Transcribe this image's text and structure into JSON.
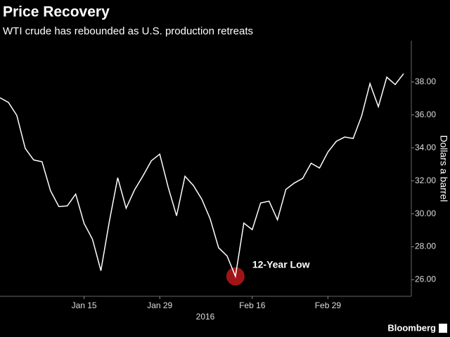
{
  "header": {
    "title": "Price Recovery",
    "subtitle": "WTI crude has rebounded as U.S. production retreats"
  },
  "footer": {
    "source": "Bloomberg"
  },
  "chart_data": {
    "type": "line",
    "categories": [
      null,
      null,
      null,
      null,
      null,
      null,
      null,
      null,
      null,
      null,
      "Jan 15",
      null,
      null,
      null,
      null,
      null,
      null,
      null,
      null,
      "Jan 29",
      null,
      null,
      null,
      null,
      null,
      null,
      null,
      null,
      null,
      null,
      "Feb 16",
      null,
      null,
      null,
      null,
      null,
      null,
      null,
      null,
      "Feb 29",
      null,
      null,
      null,
      null,
      null,
      null,
      null,
      null,
      null
    ],
    "x_label": "2016",
    "y_label": "Dollars a barrel",
    "series": [
      {
        "name": "WTI crude",
        "color": "#ffffff",
        "values": [
          37.04,
          36.76,
          35.97,
          33.97,
          33.27,
          33.16,
          31.41,
          30.44,
          30.48,
          31.2,
          29.42,
          28.46,
          26.55,
          29.53,
          32.19,
          30.34,
          31.45,
          32.3,
          33.22,
          33.62,
          31.62,
          29.88,
          32.28,
          31.72,
          30.89,
          29.69,
          27.94,
          27.45,
          26.21,
          29.44,
          29.04,
          30.66,
          30.77,
          29.64,
          31.48,
          31.87,
          32.15,
          33.07,
          32.78,
          33.75,
          34.4,
          34.66,
          34.57,
          35.92,
          37.9,
          36.5,
          38.29,
          37.84,
          38.5
        ]
      }
    ],
    "annotation": "12-Year Low",
    "highlight_color": "#a01418",
    "ylim": [
      25,
      40.5
    ],
    "yticks": [
      {
        "value": 26,
        "label": "26.00"
      },
      {
        "value": 28,
        "label": "28.00"
      },
      {
        "value": 30,
        "label": "30.00"
      },
      {
        "value": 32,
        "label": "32.00"
      },
      {
        "value": 34,
        "label": "34.00"
      },
      {
        "value": 36,
        "label": "36.00"
      },
      {
        "value": 38,
        "label": "38.00"
      }
    ],
    "grid": false
  }
}
